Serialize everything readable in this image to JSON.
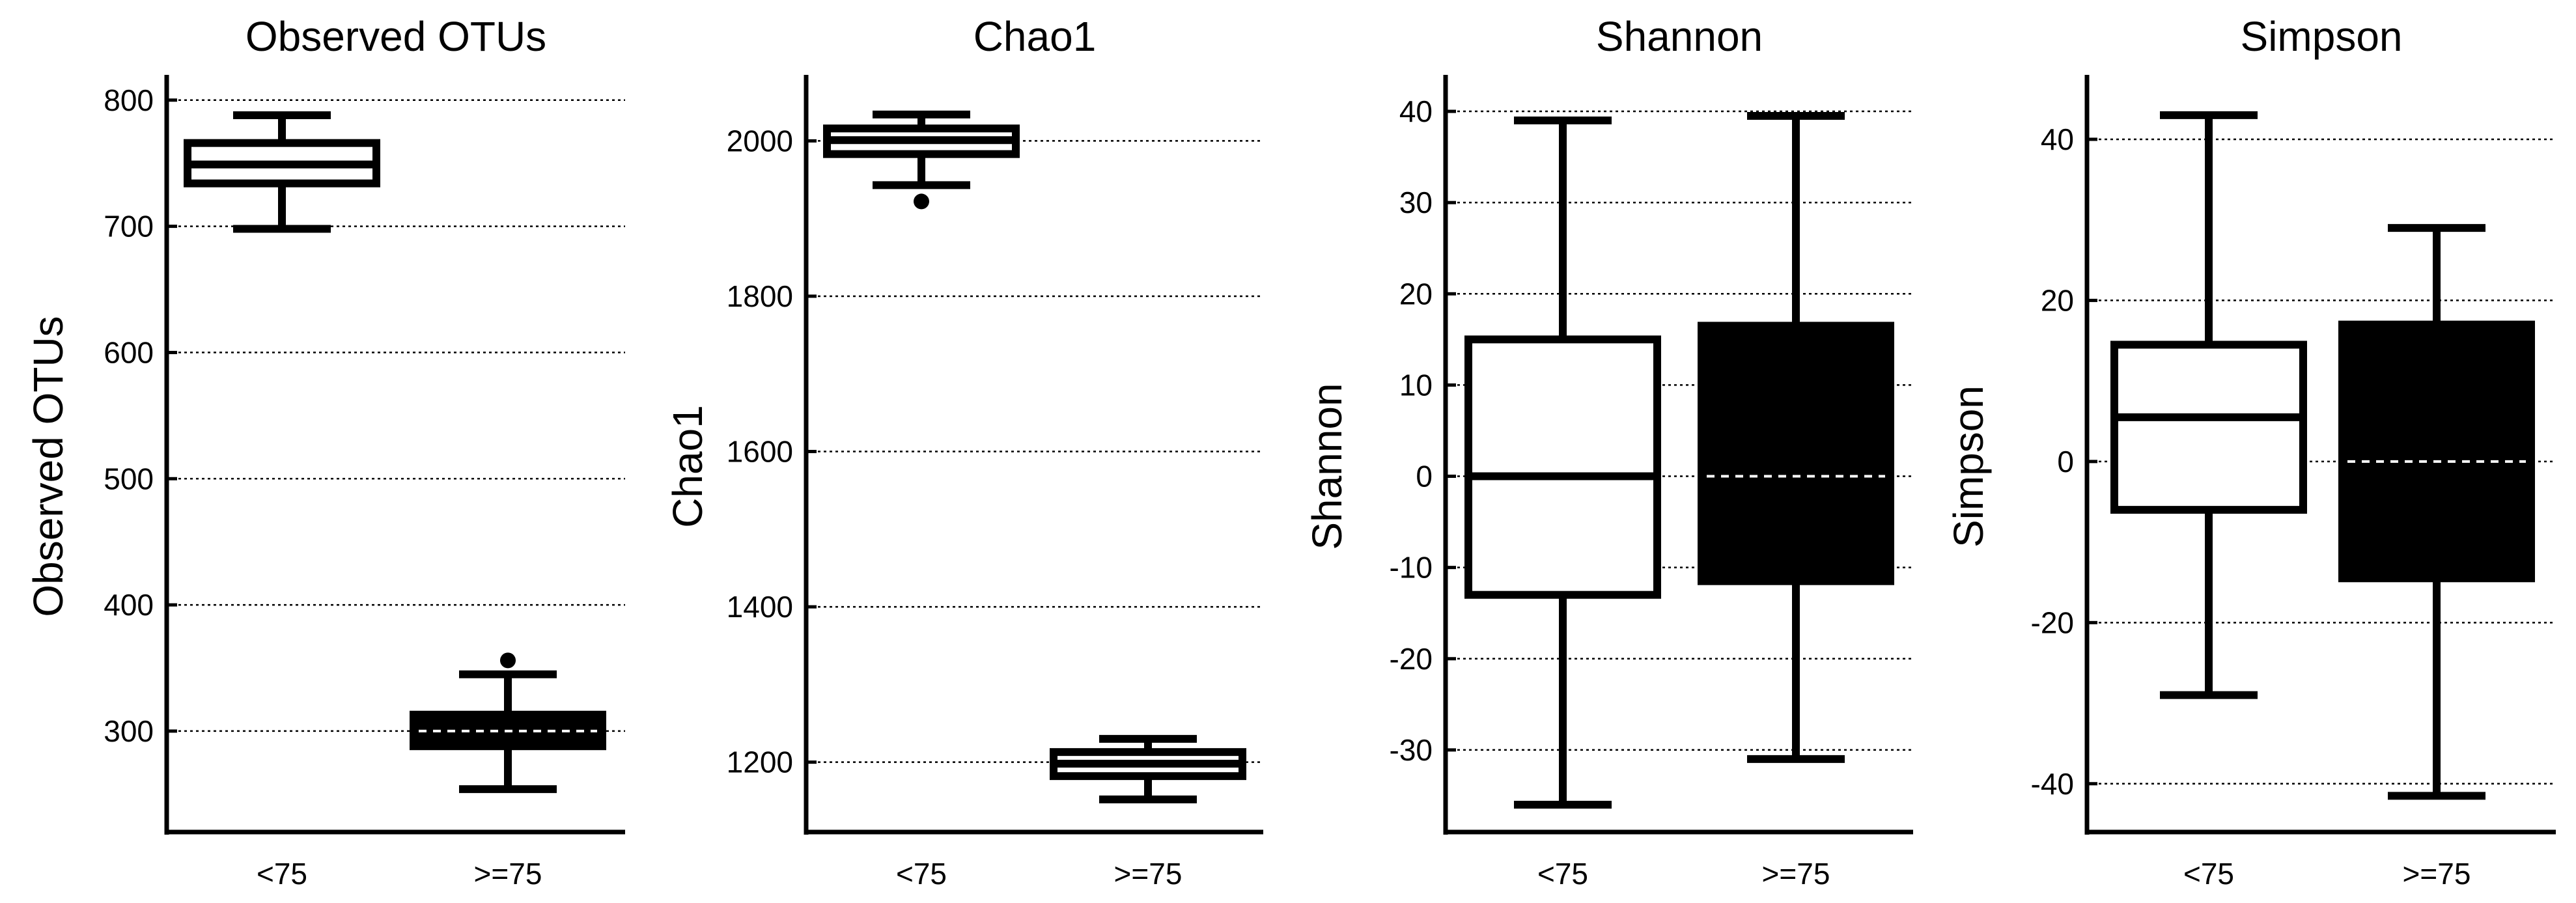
{
  "chart_data": [
    {
      "type": "box",
      "title": "Observed OTUs",
      "xlabel": "",
      "ylabel": "Observed OTUs",
      "ylim": [
        220,
        820
      ],
      "yticks": [
        300,
        400,
        500,
        600,
        700,
        800
      ],
      "ytick_labels": [
        "300",
        "400",
        "500",
        "600",
        "700",
        "800"
      ],
      "grid": true,
      "categories": [
        "<75",
        ">=75"
      ],
      "boxes": [
        {
          "label": "<75",
          "whisker_low": 698,
          "q1": 734,
          "median": 749,
          "q3": 766,
          "whisker_high": 788,
          "outliers": [],
          "fill": "#ffffff",
          "median_style": "solid"
        },
        {
          "label": ">=75",
          "whisker_low": 254,
          "q1": 288,
          "median": 300,
          "q3": 313,
          "whisker_high": 345,
          "outliers": [
            356
          ],
          "fill": "#000000",
          "median_style": "dashed"
        }
      ]
    },
    {
      "type": "box",
      "title": "Chao1",
      "xlabel": "",
      "ylabel": "Chao1",
      "ylim": [
        1110,
        2085
      ],
      "yticks": [
        1200,
        1400,
        1600,
        1800,
        2000
      ],
      "ytick_labels": [
        "1200",
        "1400",
        "1600",
        "1800",
        "2000"
      ],
      "grid": true,
      "categories": [
        "<75",
        ">=75"
      ],
      "boxes": [
        {
          "label": "<75",
          "whisker_low": 1943,
          "q1": 1983,
          "median": 2001,
          "q3": 2016,
          "whisker_high": 2034,
          "outliers": [
            1922
          ],
          "fill": "#ffffff",
          "median_style": "solid"
        },
        {
          "label": ">=75",
          "whisker_low": 1152,
          "q1": 1182,
          "median": 1198,
          "q3": 1213,
          "whisker_high": 1230,
          "outliers": [],
          "fill": "#ffffff",
          "median_style": "solid"
        }
      ]
    },
    {
      "type": "box",
      "title": "Shannon",
      "xlabel": "",
      "ylabel": "Shannon",
      "ylim": [
        -39,
        44
      ],
      "yticks": [
        -30,
        -20,
        -10,
        0,
        10,
        20,
        30,
        40
      ],
      "ytick_labels": [
        "-30",
        "-20",
        "-10",
        "0",
        "10",
        "20",
        "30",
        "40"
      ],
      "grid": true,
      "categories": [
        "<75",
        ">=75"
      ],
      "boxes": [
        {
          "label": "<75",
          "whisker_low": -36,
          "q1": -13,
          "median": 0,
          "q3": 15,
          "whisker_high": 39,
          "outliers": [],
          "fill": "#ffffff",
          "median_style": "solid"
        },
        {
          "label": ">=75",
          "whisker_low": -31,
          "q1": -11.5,
          "median": 0,
          "q3": 16.5,
          "whisker_high": 39.5,
          "outliers": [],
          "fill": "#000000",
          "median_style": "dashed"
        }
      ]
    },
    {
      "type": "box",
      "title": "Simpson",
      "xlabel": "",
      "ylabel": "Simpson",
      "ylim": [
        -46,
        48
      ],
      "yticks": [
        -40,
        -20,
        0,
        20,
        40
      ],
      "ytick_labels": [
        "-40",
        "-20",
        "0",
        "20",
        "40"
      ],
      "grid": true,
      "categories": [
        "<75",
        ">=75"
      ],
      "boxes": [
        {
          "label": "<75",
          "whisker_low": -29,
          "q1": -6,
          "median": 5.5,
          "q3": 14.5,
          "whisker_high": 43,
          "outliers": [],
          "fill": "#ffffff",
          "median_style": "solid"
        },
        {
          "label": ">=75",
          "whisker_low": -41.5,
          "q1": -14.5,
          "median": 0,
          "q3": 17,
          "whisker_high": 29,
          "outliers": [],
          "fill": "#000000",
          "median_style": "dashed"
        }
      ]
    }
  ]
}
